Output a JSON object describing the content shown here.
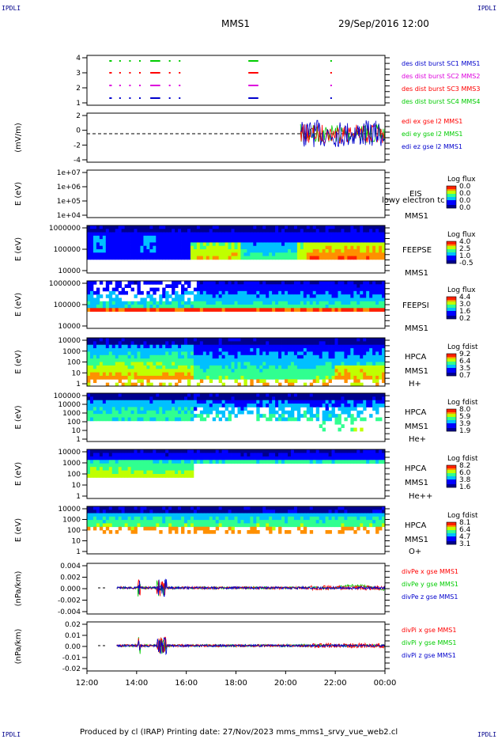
{
  "corners": {
    "tl": "IPDLI",
    "tr": "IPDLI",
    "bl": "IPDLI",
    "br": "IPDLI"
  },
  "header": {
    "spacecraft": "MMS1",
    "datetime": "29/Sep/2016 12:00"
  },
  "footer": "Produced by cl (IRAP)   Printing date: 27/Nov/2023   mms_mms1_srvy_vue_web2.cl",
  "colors": {
    "red": "#ff0000",
    "green": "#00cc00",
    "blue": "#0000cc",
    "magenta": "#dd00dd"
  },
  "chart_data": {
    "type": "multi-panel time series",
    "x_tick_labels": [
      "12:00",
      "14:00",
      "16:00",
      "18:00",
      "20:00",
      "22:00",
      "00:00"
    ],
    "panels": [
      {
        "id": "burst",
        "y_ticks": [
          "4",
          "3",
          "2",
          "1"
        ],
        "legend": [
          {
            "text": "des dist burst SC1 MMS1",
            "color": "blue"
          },
          {
            "text": "des dist burst SC2 MMS2",
            "color": "magenta"
          },
          {
            "text": "des dist burst SC3 MMS3",
            "color": "red"
          },
          {
            "text": "des dist burst SC4 MMS4",
            "color": "green"
          }
        ]
      },
      {
        "id": "edi",
        "ylabel": "(mV/m)",
        "y_ticks": [
          "2",
          "0",
          "-2",
          "-4"
        ],
        "legend": [
          {
            "text": "edi ex gse l2 MMS1",
            "color": "red"
          },
          {
            "text": "edi ey gse l2 MMS1",
            "color": "green"
          },
          {
            "text": "edi ez gse l2 MMS1",
            "color": "blue"
          }
        ]
      },
      {
        "id": "eis",
        "ylabel": "E (eV)",
        "y_ticks": [
          "1e+07",
          "1e+06",
          "1e+05",
          "1e+04"
        ],
        "labels": [
          "EIS",
          "lowy electron tc",
          "MMS1"
        ],
        "cbar_title": "Log flux",
        "cbar_ticks": [
          "0.0",
          "0.0",
          "0.0",
          "0.0"
        ]
      },
      {
        "id": "feepse",
        "ylabel": "E (eV)",
        "y_ticks": [
          "1000000",
          "100000",
          "10000"
        ],
        "labels": [
          "FEEPSE",
          "MMS1"
        ],
        "cbar_title": "Log flux",
        "cbar_ticks": [
          "4.0",
          "2.5",
          "1.0",
          "-0.5"
        ]
      },
      {
        "id": "feepsi",
        "ylabel": "E (eV)",
        "y_ticks": [
          "1000000",
          "100000",
          "10000"
        ],
        "labels": [
          "FEEPSI",
          "MMS1"
        ],
        "cbar_title": "Log flux",
        "cbar_ticks": [
          "4.4",
          "3.0",
          "1.6",
          "0.2"
        ]
      },
      {
        "id": "hpca_h",
        "ylabel": "E (eV)",
        "y_ticks": [
          "10000",
          "1000",
          "100",
          "10",
          "1"
        ],
        "labels": [
          "HPCA",
          "MMS1",
          "H+"
        ],
        "cbar_title": "Log fdist",
        "cbar_ticks": [
          "9.2",
          "6.4",
          "3.5",
          "0.7"
        ]
      },
      {
        "id": "hpca_he",
        "ylabel": "E (eV)",
        "y_ticks": [
          "100000",
          "10000",
          "1000",
          "100",
          "10",
          "1"
        ],
        "labels": [
          "HPCA",
          "MMS1",
          "He+"
        ],
        "cbar_title": "Log fdist",
        "cbar_ticks": [
          "8.0",
          "5.9",
          "3.9",
          "1.9"
        ]
      },
      {
        "id": "hpca_hepp",
        "ylabel": "E (eV)",
        "y_ticks": [
          "10000",
          "1000",
          "100",
          "10",
          "1"
        ],
        "labels": [
          "HPCA",
          "MMS1",
          "He++"
        ],
        "cbar_title": "Log fdist",
        "cbar_ticks": [
          "8.2",
          "6.0",
          "3.8",
          "1.6"
        ]
      },
      {
        "id": "hpca_o",
        "ylabel": "E (eV)",
        "y_ticks": [
          "10000",
          "1000",
          "100",
          "10",
          "1"
        ],
        "labels": [
          "HPCA",
          "MMS1",
          "O+"
        ],
        "cbar_title": "Log fdist",
        "cbar_ticks": [
          "8.1",
          "6.4",
          "4.7",
          "3.1"
        ]
      },
      {
        "id": "divpe",
        "ylabel": "(nPa/km)",
        "y_ticks": [
          "0.004",
          "0.002",
          "0.000",
          "-0.002",
          "-0.004"
        ],
        "legend": [
          {
            "text": "divPe x gse MMS1",
            "color": "red"
          },
          {
            "text": "divPe y gse MMS1",
            "color": "green"
          },
          {
            "text": "divPe z gse MMS1",
            "color": "blue"
          }
        ]
      },
      {
        "id": "divpi",
        "ylabel": "(nPa/km)",
        "y_ticks": [
          "0.02",
          "0.01",
          "0.00",
          "-0.01",
          "-0.02"
        ],
        "legend": [
          {
            "text": "divPi x gse MMS1",
            "color": "red"
          },
          {
            "text": "divPi y gse MMS1",
            "color": "green"
          },
          {
            "text": "divPi z gse MMS1",
            "color": "blue"
          }
        ]
      }
    ],
    "burst_intervals_hours": [
      [
        12.9,
        13.0
      ],
      [
        13.3,
        13.35
      ],
      [
        13.7,
        13.75
      ],
      [
        14.1,
        14.15
      ],
      [
        14.55,
        14.95
      ],
      [
        15.3,
        15.35
      ],
      [
        15.7,
        15.75
      ],
      [
        18.5,
        18.9
      ],
      [
        21.8,
        21.82
      ]
    ],
    "grid": false
  }
}
